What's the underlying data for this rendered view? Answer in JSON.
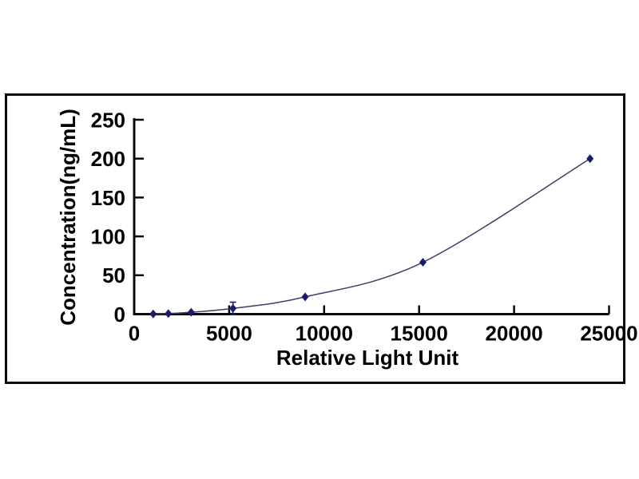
{
  "figure": {
    "background_color": "#ffffff",
    "frame_border_color": "#0a0a0a"
  },
  "chart_data": {
    "type": "line",
    "title": "",
    "xlabel": "Relative Light Unit",
    "ylabel": "Concentration(ng/mL)",
    "x": [
      1000,
      1800,
      3000,
      5200,
      9000,
      15200,
      24000
    ],
    "y": [
      0.27,
      0.82,
      2.47,
      7.41,
      22.2,
      66.7,
      200
    ],
    "y_err": [
      0,
      0,
      0,
      8,
      0,
      0,
      0
    ],
    "xlim": [
      0,
      25000
    ],
    "ylim": [
      0,
      250
    ],
    "x_ticks": [
      0,
      5000,
      10000,
      15000,
      20000,
      25000
    ],
    "y_ticks": [
      0,
      50,
      100,
      150,
      200,
      250
    ],
    "grid": false,
    "legend_position": "none",
    "marker": "diamond",
    "line_color": "#3d3d66",
    "marker_color": "#1b1b6e",
    "axis_color": "#0a0a0a",
    "text_color": "#000000"
  }
}
